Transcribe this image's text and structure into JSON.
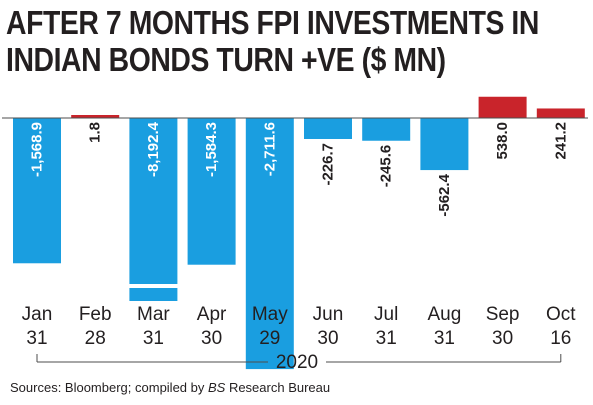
{
  "title_lines": [
    "AFTER 7 MONTHS FPI INVESTMENTS IN",
    "INDIAN BONDS TURN +VE ($ MN)"
  ],
  "source": {
    "prefix": "Sources: Bloomberg; compiled by ",
    "italic": "BS",
    "suffix": " Research Bureau"
  },
  "colors": {
    "negative": "#1a9ee0",
    "positive": "#c9242b",
    "text": "#231f20",
    "axis_line": "#4d4d4d"
  },
  "chart_data": {
    "type": "bar",
    "title": "AFTER 7 MONTHS FPI INVESTMENTS IN INDIAN BONDS TURN +VE ($ MN)",
    "categories": [
      {
        "month": "Jan",
        "day": "31"
      },
      {
        "month": "Feb",
        "day": "28"
      },
      {
        "month": "Mar",
        "day": "31"
      },
      {
        "month": "Apr",
        "day": "30"
      },
      {
        "month": "May",
        "day": "29"
      },
      {
        "month": "Jun",
        "day": "30"
      },
      {
        "month": "Jul",
        "day": "31"
      },
      {
        "month": "Aug",
        "day": "31"
      },
      {
        "month": "Sep",
        "day": "30"
      },
      {
        "month": "Oct",
        "day": "16"
      }
    ],
    "values": [
      -1568.9,
      1.8,
      -8192.4,
      -1584.3,
      -2711.6,
      -226.7,
      -245.6,
      -562.4,
      538.0,
      241.2
    ],
    "labels": [
      "-1,568.9",
      "1.8",
      "-8,192.4",
      "-1,584.3",
      "-2,711.6",
      "-226.7",
      "-245.6",
      "-562.4",
      "538.0",
      "241.2"
    ],
    "year_label": "2020",
    "axis_break": {
      "category_index": 2,
      "note": "Mar bar is truncated with a break"
    }
  }
}
